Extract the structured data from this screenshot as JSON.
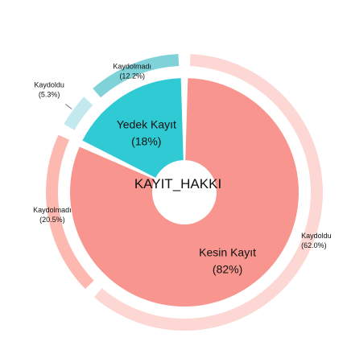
{
  "chart_data": {
    "type": "pie",
    "center_label": "KAYIT_HAKKI",
    "inner": [
      {
        "name": "Kesin Kayıt",
        "value": 82,
        "pct_label": "(82%)",
        "color": "#F8958E"
      },
      {
        "name": "Yedek Kayıt",
        "value": 18,
        "pct_label": "(18%)",
        "color": "#2FCAD3"
      }
    ],
    "outer": [
      {
        "name": "Kaydoldu",
        "value": 62.0,
        "pct_label": "(62.0%)",
        "parent": "Kesin Kayıt",
        "color": "#FDD7D3"
      },
      {
        "name": "Kaydolmadı",
        "value": 20.5,
        "pct_label": "(20.5%)",
        "parent": "Kesin Kayıt",
        "color": "#FDB8B0"
      },
      {
        "name": "Kaydoldu",
        "value": 5.3,
        "pct_label": "(5.3%)",
        "parent": "Yedek Kayıt",
        "color": "#C2E9ED"
      },
      {
        "name": "Kaydolmadı",
        "value": 12.2,
        "pct_label": "(12.2%)",
        "parent": "Yedek Kayıt",
        "color": "#7FD2D7"
      }
    ]
  }
}
